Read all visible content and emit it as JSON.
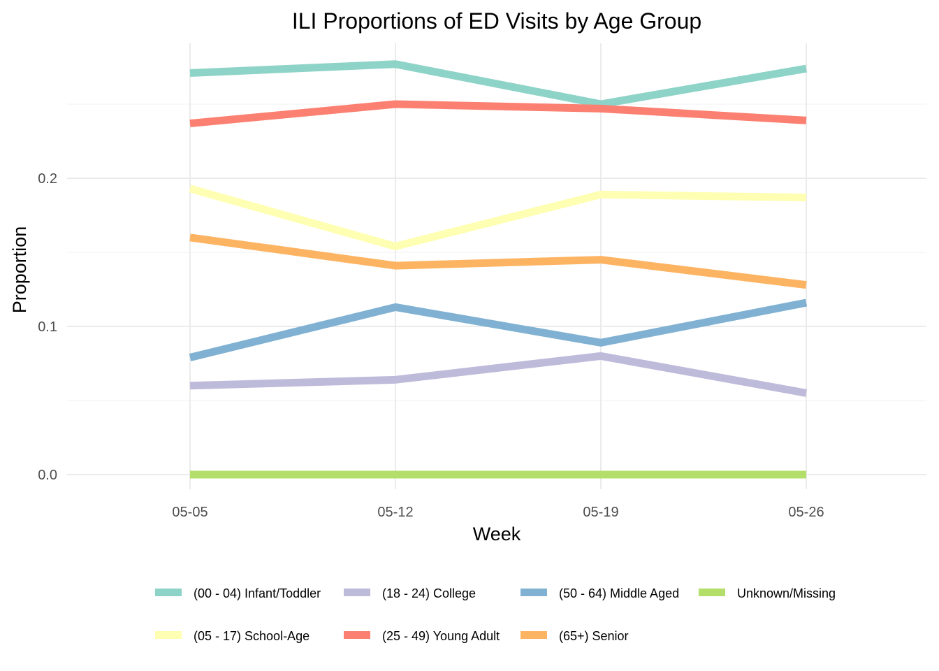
{
  "chart_data": {
    "type": "line",
    "title": "ILI Proportions of ED Visits by Age Group",
    "xlabel": "Week",
    "ylabel": "Proportion",
    "categories": [
      "05-05",
      "05-12",
      "05-19",
      "05-26"
    ],
    "ylim": [
      -0.012,
      0.29
    ],
    "yticks": [
      0.0,
      0.1,
      0.2
    ],
    "ytick_labels": [
      "0.0",
      "0.1",
      "0.2"
    ],
    "grid": true,
    "legend_position": "bottom",
    "series": [
      {
        "name": "(00 - 04) Infant/Toddler",
        "color": "#8dd3c7",
        "values": [
          0.271,
          0.277,
          0.25,
          0.274
        ]
      },
      {
        "name": "(05 - 17) School-Age",
        "color": "#ffffb3",
        "values": [
          0.193,
          0.154,
          0.189,
          0.187
        ]
      },
      {
        "name": "(18 - 24) College",
        "color": "#bebada",
        "values": [
          0.06,
          0.064,
          0.08,
          0.055
        ]
      },
      {
        "name": "(25 - 49) Young Adult",
        "color": "#fb8072",
        "values": [
          0.237,
          0.25,
          0.247,
          0.239
        ]
      },
      {
        "name": "(50 - 64) Middle Aged",
        "color": "#80b1d3",
        "values": [
          0.079,
          0.113,
          0.089,
          0.116
        ]
      },
      {
        "name": "(65+) Senior",
        "color": "#fdb462",
        "values": [
          0.16,
          0.141,
          0.145,
          0.128
        ]
      },
      {
        "name": "Unknown/Missing",
        "color": "#b3de69",
        "values": [
          0.0,
          0.0,
          0.0,
          0.0
        ]
      }
    ],
    "legend_order": [
      0,
      2,
      4,
      6,
      1,
      3,
      5
    ]
  }
}
